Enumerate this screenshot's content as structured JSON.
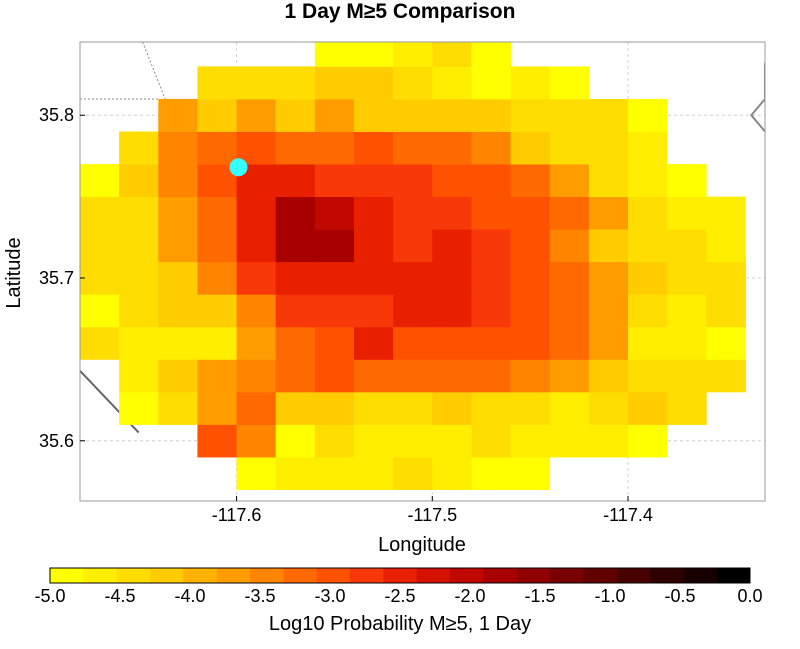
{
  "chart_data": {
    "type": "heatmap",
    "title": "1 Day M≥5 Comparison",
    "xlabel": "Longitude",
    "ylabel": "Latitude",
    "xlim": [
      -117.68,
      -117.33
    ],
    "ylim": [
      35.563,
      35.845
    ],
    "cell_size_deg": 0.02,
    "x_ticks": [
      -117.6,
      -117.5,
      -117.4
    ],
    "x_tick_labels": [
      "-117.6",
      "-117.5",
      "-117.4"
    ],
    "y_ticks": [
      35.6,
      35.7,
      35.8
    ],
    "y_tick_labels": [
      "35.6",
      "35.7",
      "35.8"
    ],
    "grid": true,
    "colorbar": {
      "label": "Log10 Probability M≥5, 1 Day",
      "range": [
        -5.0,
        0.0
      ],
      "ticks": [
        -5.0,
        -4.5,
        -4.0,
        -3.5,
        -3.0,
        -2.5,
        -2.0,
        -1.5,
        -1.0,
        -0.5,
        0.0
      ],
      "tick_labels": [
        "-5.0",
        "-4.5",
        "-4.0",
        "-3.5",
        "-3.0",
        "-2.5",
        "-2.0",
        "-1.5",
        "-1.0",
        "-0.5",
        "0.0"
      ],
      "colors": [
        "#ffff00",
        "#ffee00",
        "#ffdd00",
        "#ffcc00",
        "#ffb300",
        "#ff9c00",
        "#ff8400",
        "#ff6a00",
        "#ff5200",
        "#f83808",
        "#e82000",
        "#d41000",
        "#c00800",
        "#a80000",
        "#900000",
        "#780000",
        "#600000",
        "#480000",
        "#300000",
        "#180000",
        "#000000"
      ]
    },
    "grid_lon_start": -117.67,
    "grid_lat_start": 35.58,
    "rows": [
      {
        "lat": 35.58,
        "lon_start": -117.59,
        "values": [
          -4.8,
          -4.55,
          -4.55,
          -4.55,
          -4.3,
          -4.55,
          -4.8,
          -4.8
        ]
      },
      {
        "lat": 35.6,
        "lon_start": -117.61,
        "values": [
          -3.0,
          -3.55,
          -4.8,
          -4.3,
          -4.55,
          -4.55,
          -4.55,
          -4.3,
          -4.55,
          -4.55,
          -4.55,
          -4.8
        ]
      },
      {
        "lat": 35.62,
        "lon_start": -117.65,
        "values": [
          -4.8,
          -4.3,
          -3.8,
          -3.3,
          -4.05,
          -4.05,
          -4.3,
          -4.3,
          -4.05,
          -4.3,
          -4.3,
          -4.55,
          -4.3,
          -4.05,
          -4.3
        ]
      },
      {
        "lat": 35.64,
        "lon_start": -117.65,
        "values": [
          -4.55,
          -4.05,
          -3.8,
          -3.55,
          -3.3,
          -3.05,
          -3.3,
          -3.3,
          -3.3,
          -3.3,
          -3.55,
          -3.8,
          -4.05,
          -4.3,
          -4.3,
          -4.3
        ]
      },
      {
        "lat": 35.66,
        "lon_start": -117.67,
        "values": [
          -4.3,
          -4.55,
          -4.55,
          -4.55,
          -3.8,
          -3.3,
          -3.05,
          -2.5,
          -3.05,
          -3.05,
          -3.05,
          -3.05,
          -3.3,
          -3.8,
          -4.55,
          -4.55,
          -4.8
        ]
      },
      {
        "lat": 35.68,
        "lon_start": -117.67,
        "values": [
          -4.8,
          -4.3,
          -4.05,
          -4.05,
          -3.55,
          -2.8,
          -2.8,
          -2.8,
          -2.55,
          -2.55,
          -2.8,
          -3.05,
          -3.3,
          -3.8,
          -4.3,
          -4.55,
          -4.3
        ]
      },
      {
        "lat": 35.7,
        "lon_start": -117.67,
        "values": [
          -4.3,
          -4.3,
          -4.05,
          -3.55,
          -2.8,
          -2.55,
          -2.55,
          -2.55,
          -2.55,
          -2.55,
          -2.8,
          -3.05,
          -3.3,
          -3.8,
          -4.05,
          -4.3,
          -4.3
        ]
      },
      {
        "lat": 35.72,
        "lon_start": -117.67,
        "values": [
          -4.3,
          -4.3,
          -3.8,
          -3.3,
          -2.55,
          -1.8,
          -1.8,
          -2.55,
          -2.8,
          -2.55,
          -2.8,
          -3.05,
          -3.55,
          -4.05,
          -4.3,
          -4.3,
          -4.55
        ]
      },
      {
        "lat": 35.74,
        "lon_start": -117.67,
        "values": [
          -4.3,
          -4.3,
          -3.8,
          -3.3,
          -2.55,
          -1.8,
          -2.05,
          -2.55,
          -2.8,
          -2.8,
          -3.05,
          -3.05,
          -3.3,
          -3.8,
          -4.3,
          -4.55,
          -4.55
        ]
      },
      {
        "lat": 35.76,
        "lon_start": -117.67,
        "values": [
          -4.8,
          -4.05,
          -3.55,
          -3.05,
          -2.55,
          -2.55,
          -2.8,
          -2.8,
          -2.8,
          -3.05,
          -3.05,
          -3.3,
          -3.8,
          -4.3,
          -4.55,
          -4.8
        ]
      },
      {
        "lat": 35.78,
        "lon_start": -117.65,
        "values": [
          -4.3,
          -3.55,
          -3.3,
          -3.05,
          -3.3,
          -3.3,
          -3.05,
          -3.3,
          -3.3,
          -3.55,
          -4.05,
          -4.3,
          -4.3,
          -4.55
        ]
      },
      {
        "lat": 35.8,
        "lon_start": -117.63,
        "values": [
          -3.8,
          -4.05,
          -3.8,
          -4.05,
          -3.8,
          -4.05,
          -4.05,
          -4.05,
          -4.05,
          -4.3,
          -4.3,
          -4.3,
          -4.8
        ]
      },
      {
        "lat": 35.82,
        "lon_start": -117.61,
        "values": [
          -4.3,
          -4.3,
          -4.3,
          -4.05,
          -4.05,
          -4.3,
          -4.55,
          -4.8,
          -4.55,
          -4.8
        ]
      },
      {
        "lat": 35.84,
        "lon_start": -117.55,
        "values": [
          -4.8,
          -4.8,
          -4.55,
          -4.3,
          -4.8
        ]
      }
    ],
    "annotations": [
      {
        "type": "marker",
        "shape": "circle",
        "color": "#33ffff",
        "lon": -117.599,
        "lat": 35.768
      }
    ],
    "background_lines": [
      {
        "color": "#888888",
        "style": "dashed",
        "points": [
          [
            -117.68,
            35.81
          ],
          [
            -117.64,
            35.81
          ],
          [
            -117.628,
            35.785
          ],
          [
            -117.62,
            35.76
          ],
          [
            -117.63,
            35.742
          ],
          [
            -117.68,
            35.742
          ]
        ]
      },
      {
        "color": "#888888",
        "style": "dashed",
        "points": [
          [
            -117.648,
            35.845
          ],
          [
            -117.62,
            35.76
          ]
        ]
      },
      {
        "color": "#666666",
        "style": "solid",
        "points": [
          [
            -117.68,
            35.643
          ],
          [
            -117.65,
            35.605
          ]
        ]
      },
      {
        "color": "#888888",
        "style": "solid",
        "points": [
          [
            -117.33,
            35.832
          ],
          [
            -117.33,
            35.81
          ],
          [
            -117.337,
            35.8
          ],
          [
            -117.33,
            35.79
          ]
        ]
      }
    ]
  }
}
